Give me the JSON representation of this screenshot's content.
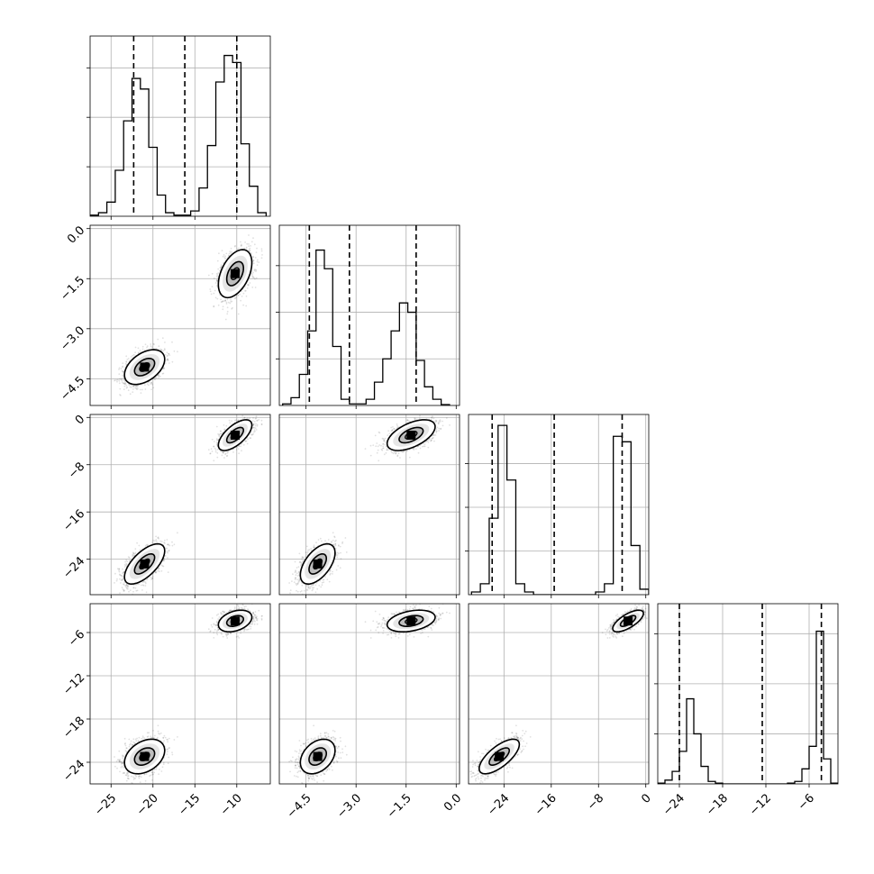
{
  "chart_data": {
    "type": "corner",
    "parameters": 4,
    "grid": true,
    "points_color": "#000000",
    "fill_colors": [
      "#e6e6e6",
      "#bdbdbd",
      "#7f7f7f",
      "#000000"
    ],
    "axes": [
      {
        "range": [
          -27.5,
          -6.0
        ],
        "ticks": [
          -25,
          -20,
          -15,
          -10
        ],
        "tick_labels": [
          "−25",
          "−20",
          "−15",
          "−10"
        ]
      },
      {
        "range": [
          -5.3,
          0.1
        ],
        "ticks": [
          -4.5,
          -3.0,
          -1.5,
          0.0
        ],
        "tick_labels": [
          "−4.5",
          "−3.0",
          "−1.5",
          "0.0"
        ]
      },
      {
        "range": [
          -30.0,
          0.5
        ],
        "ticks": [
          -24,
          -16,
          -8,
          0
        ],
        "tick_labels": [
          "−24",
          "−16",
          "−8",
          "0"
        ]
      },
      {
        "range": [
          -27.0,
          -2.0
        ],
        "ticks": [
          -24,
          -18,
          -12,
          -6
        ],
        "tick_labels": [
          "−24",
          "−18",
          "−12",
          "−6"
        ]
      }
    ],
    "histograms": [
      {
        "bin_edges": [
          -27.5,
          -26.5,
          -25.5,
          -24.5,
          -23.5,
          -22.5,
          -21.5,
          -20.5,
          -19.5,
          -18.5,
          -17.5,
          -16.5,
          -15.5,
          -14.5,
          -13.5,
          -12.5,
          -11.5,
          -10.5,
          -9.5,
          -8.5,
          -7.5,
          -6.5
        ],
        "counts": [
          0.3,
          1.0,
          4.0,
          13.0,
          27.0,
          39.0,
          36.0,
          19.5,
          6.0,
          1.0,
          0.3,
          0.3,
          1.5,
          8.0,
          20.0,
          38.0,
          45.5,
          43.5,
          20.5,
          8.5,
          1.0
        ],
        "ymax": 51.0,
        "yticks": [
          14,
          28,
          42
        ],
        "quantiles": [
          -22.3,
          -16.2,
          -10.0
        ]
      },
      {
        "bin_edges": [
          -5.2,
          -4.95,
          -4.7,
          -4.45,
          -4.2,
          -3.95,
          -3.7,
          -3.45,
          -3.2,
          -2.95,
          -2.7,
          -2.45,
          -2.2,
          -1.95,
          -1.7,
          -1.45,
          -1.2,
          -0.95,
          -0.7,
          -0.45,
          -0.2
        ],
        "counts": [
          0.5,
          2.5,
          10.0,
          24.0,
          50.0,
          44.0,
          19.0,
          2.0,
          0.5,
          0.5,
          2.0,
          7.5,
          15.0,
          24.0,
          33.0,
          30.0,
          14.5,
          6.0,
          2.0,
          0.3
        ],
        "ymax": 58.0,
        "yticks": [
          15,
          30,
          45
        ],
        "quantiles": [
          -4.4,
          -3.2,
          -1.2
        ]
      },
      {
        "bin_edges": [
          -29.5,
          -28.0,
          -26.5,
          -25.0,
          -23.5,
          -22.0,
          -20.5,
          -19.0,
          -17.5,
          -16.0,
          -14.5,
          -13.0,
          -11.5,
          -10.0,
          -8.5,
          -7.0,
          -5.5,
          -4.0,
          -2.5,
          -1.0,
          0.5
        ],
        "counts": [
          0.5,
          2.0,
          14.0,
          31.0,
          21.0,
          2.0,
          0.5,
          0.0,
          0.0,
          0.0,
          0.0,
          0.0,
          0.0,
          0.0,
          0.5,
          2.0,
          29.0,
          28.0,
          9.0,
          1.0
        ],
        "ymax": 33.0,
        "yticks": [
          8,
          16,
          24
        ],
        "quantiles": [
          -26.0,
          -15.5,
          -4.0
        ]
      },
      {
        "bin_edges": [
          -27.0,
          -26.0,
          -25.0,
          -24.0,
          -23.0,
          -22.0,
          -21.0,
          -20.0,
          -19.0,
          -18.0,
          -17.0,
          -16.0,
          -15.0,
          -14.0,
          -13.0,
          -12.0,
          -11.0,
          -10.0,
          -9.0,
          -8.0,
          -7.0,
          -6.0,
          -5.0,
          -4.0,
          -3.0,
          -2.0
        ],
        "counts": [
          0.3,
          1.5,
          5.0,
          13.0,
          34.0,
          20.0,
          7.0,
          1.0,
          0.3,
          0.0,
          0.0,
          0.0,
          0.0,
          0.0,
          0.0,
          0.0,
          0.0,
          0.0,
          0.3,
          1.0,
          6.0,
          15.0,
          61.0,
          10.0,
          0.3
        ],
        "ymax": 72.0,
        "yticks": [
          20,
          40,
          60
        ],
        "quantiles": [
          -24.0,
          -12.5,
          -4.3
        ]
      }
    ],
    "clusters": [
      {
        "center": [
          -21.0,
          -4.15,
          -24.8,
          -23.2
        ],
        "sd": [
          1.2,
          0.26,
          1.7,
          1.2
        ]
      },
      {
        "center": [
          -10.2,
          -1.35,
          -3.0,
          -4.4
        ],
        "sd": [
          1.0,
          0.36,
          1.3,
          0.75
        ]
      }
    ],
    "within_cluster_correlation": [
      [
        1.0,
        0.45,
        0.65,
        0.35
      ],
      [
        0.45,
        1.0,
        0.55,
        0.35
      ],
      [
        0.65,
        0.55,
        1.0,
        0.7
      ],
      [
        0.35,
        0.35,
        0.7,
        1.0
      ]
    ]
  }
}
